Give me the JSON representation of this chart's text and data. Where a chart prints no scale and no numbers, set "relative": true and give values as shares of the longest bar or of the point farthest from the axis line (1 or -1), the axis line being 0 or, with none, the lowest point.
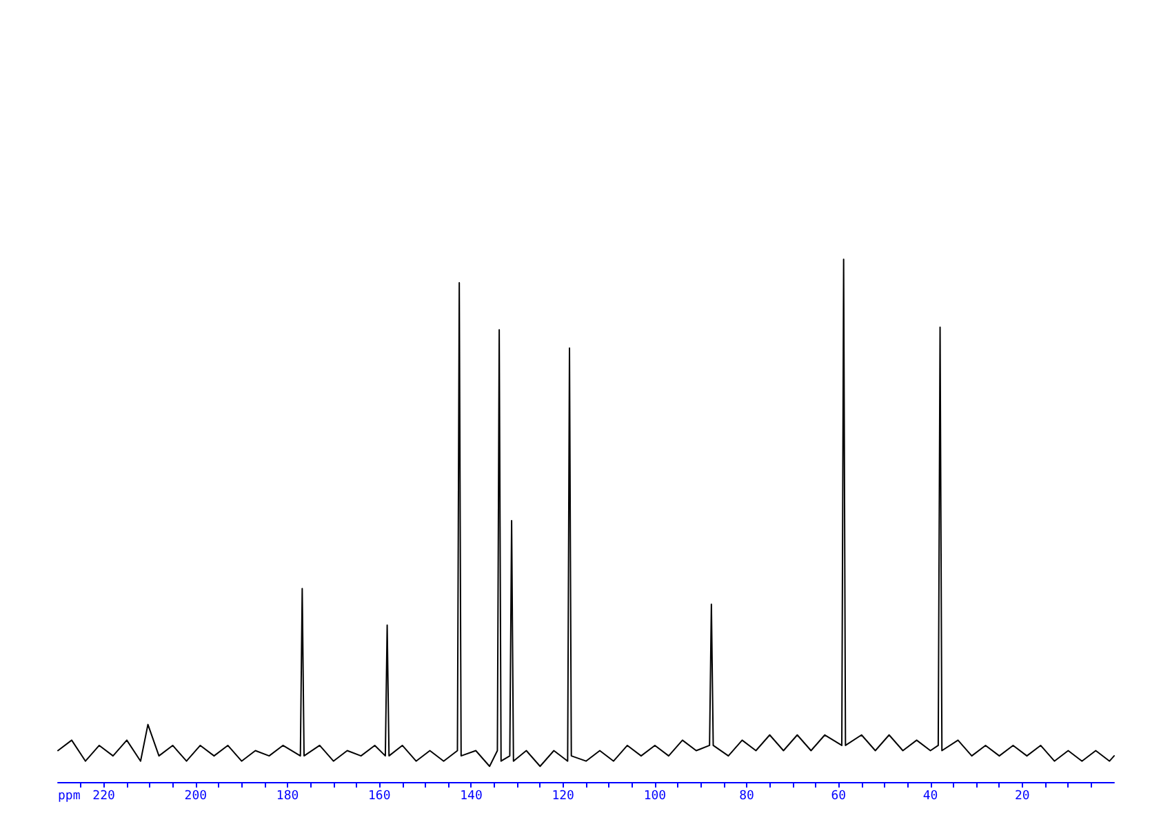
{
  "chart_data": {
    "type": "line",
    "relative": true,
    "xlabel": "ppm",
    "xlim": [
      230,
      0
    ],
    "xticks": [
      {
        "value": 225,
        "label": null
      },
      220,
      {
        "value": 215,
        "label": null
      },
      {
        "value": 210,
        "label": null
      },
      {
        "value": 205,
        "label": null
      },
      200,
      {
        "value": 195,
        "label": null
      },
      {
        "value": 190,
        "label": null
      },
      {
        "value": 185,
        "label": null
      },
      180,
      {
        "value": 175,
        "label": null
      },
      {
        "value": 170,
        "label": null
      },
      {
        "value": 165,
        "label": null
      },
      160,
      {
        "value": 155,
        "label": null
      },
      {
        "value": 150,
        "label": null
      },
      {
        "value": 145,
        "label": null
      },
      140,
      {
        "value": 135,
        "label": null
      },
      {
        "value": 130,
        "label": null
      },
      {
        "value": 125,
        "label": null
      },
      120,
      {
        "value": 115,
        "label": null
      },
      {
        "value": 110,
        "label": null
      },
      {
        "value": 105,
        "label": null
      },
      100,
      {
        "value": 95,
        "label": null
      },
      {
        "value": 90,
        "label": null
      },
      {
        "value": 85,
        "label": null
      },
      80,
      {
        "value": 75,
        "label": null
      },
      {
        "value": 70,
        "label": null
      },
      {
        "value": 65,
        "label": null
      },
      60,
      {
        "value": 55,
        "label": null
      },
      {
        "value": 50,
        "label": null
      },
      {
        "value": 45,
        "label": null
      },
      40,
      {
        "value": 35,
        "label": null
      },
      {
        "value": 30,
        "label": null
      },
      {
        "value": 25,
        "label": null
      },
      20,
      {
        "value": 15,
        "label": null
      },
      {
        "value": 10,
        "label": null
      },
      {
        "value": 5,
        "label": null
      }
    ],
    "tick_labels": "x",
    "grid": false,
    "marker": "none",
    "line_style": "solid",
    "series": [
      {
        "color": "#000000",
        "x": [
          230,
          227,
          224,
          221,
          218,
          215,
          212,
          210.4,
          208,
          205,
          202,
          199,
          196,
          193,
          190,
          187,
          184,
          181,
          177.2,
          176.8,
          176.4,
          173,
          170,
          167,
          164,
          161,
          158.7,
          158.3,
          157.9,
          155,
          152,
          149,
          146,
          143,
          142.6,
          142.2,
          139,
          136,
          134.3,
          133.9,
          133.5,
          131.6,
          131.2,
          130.8,
          128,
          125,
          122,
          119,
          118.6,
          118.2,
          115,
          112,
          109,
          106,
          103,
          100,
          97,
          94,
          91,
          88.1,
          87.7,
          87.3,
          84,
          81,
          78,
          75,
          72,
          69,
          66,
          63,
          59.3,
          58.9,
          58.5,
          55,
          52,
          49,
          46,
          43,
          40,
          38.3,
          37.9,
          37.5,
          34,
          31,
          28,
          25,
          22,
          19,
          16,
          13,
          10,
          7,
          4,
          1,
          0
        ],
        "values": [
          0.06,
          0.08,
          0.04,
          0.07,
          0.05,
          0.08,
          0.04,
          0.11,
          0.05,
          0.07,
          0.04,
          0.07,
          0.05,
          0.07,
          0.04,
          0.06,
          0.05,
          0.07,
          0.05,
          0.37,
          0.05,
          0.07,
          0.04,
          0.06,
          0.05,
          0.07,
          0.05,
          0.3,
          0.05,
          0.07,
          0.04,
          0.06,
          0.04,
          0.06,
          0.955,
          0.05,
          0.06,
          0.03,
          0.06,
          0.865,
          0.04,
          0.05,
          0.5,
          0.04,
          0.06,
          0.03,
          0.06,
          0.04,
          0.83,
          0.05,
          0.04,
          0.06,
          0.04,
          0.07,
          0.05,
          0.07,
          0.05,
          0.08,
          0.06,
          0.07,
          0.34,
          0.07,
          0.05,
          0.08,
          0.06,
          0.09,
          0.06,
          0.09,
          0.06,
          0.09,
          0.07,
          1,
          0.07,
          0.09,
          0.06,
          0.09,
          0.06,
          0.08,
          0.06,
          0.07,
          0.87,
          0.06,
          0.08,
          0.05,
          0.07,
          0.05,
          0.07,
          0.05,
          0.07,
          0.04,
          0.06,
          0.04,
          0.06,
          0.04,
          0.05
        ]
      }
    ]
  }
}
